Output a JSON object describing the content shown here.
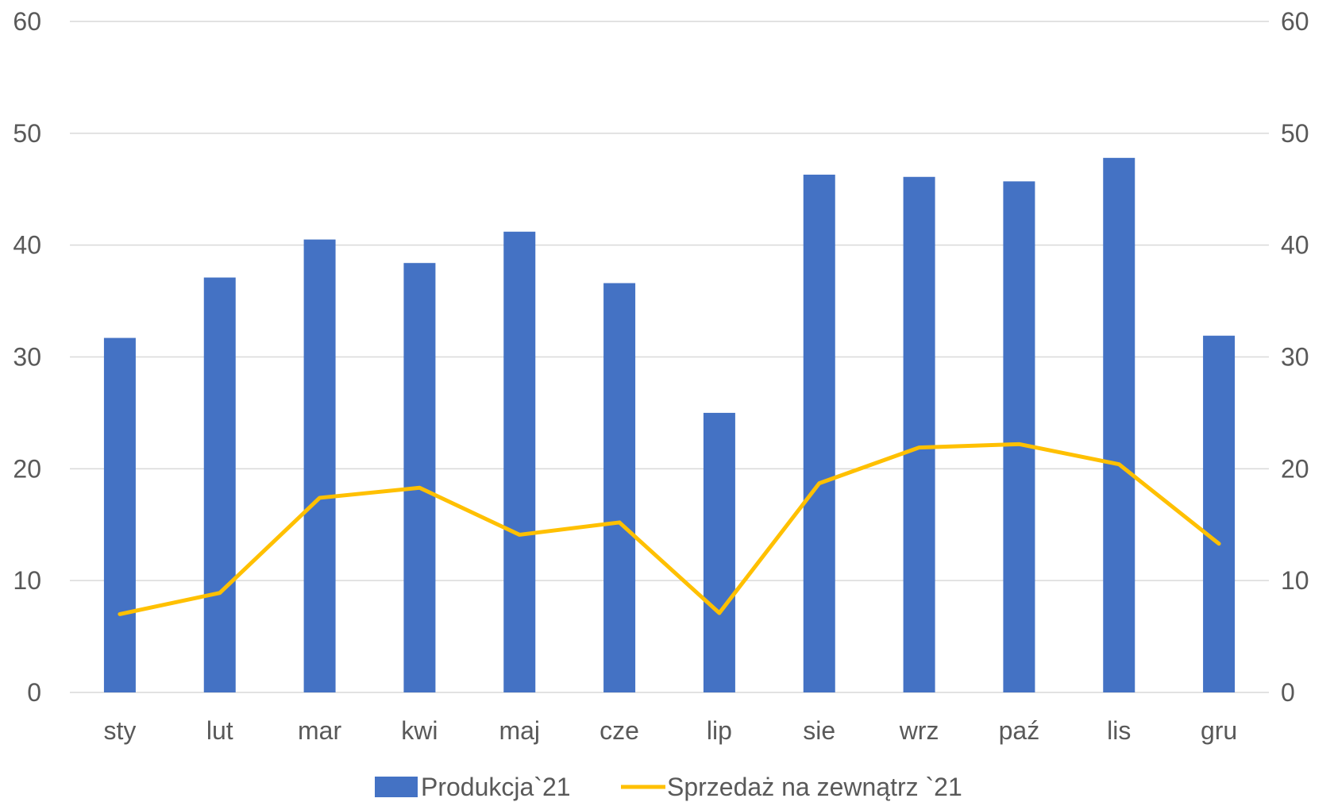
{
  "chart_data": {
    "type": "bar",
    "categories": [
      "sty",
      "lut",
      "mar",
      "kwi",
      "maj",
      "cze",
      "lip",
      "sie",
      "wrz",
      "paź",
      "lis",
      "gru"
    ],
    "series": [
      {
        "name": "Produkcja`21",
        "type": "bar",
        "axis": "left",
        "color": "#4472C4",
        "values": [
          31.7,
          37.1,
          40.5,
          38.4,
          41.2,
          36.6,
          25.0,
          46.3,
          46.1,
          45.7,
          47.8,
          31.9
        ]
      },
      {
        "name": "Sprzedaż na zewnątrz `21",
        "type": "line",
        "axis": "right",
        "color": "#FFC000",
        "values": [
          7.0,
          8.9,
          17.4,
          18.3,
          14.1,
          15.2,
          7.1,
          18.7,
          21.9,
          22.2,
          20.4,
          13.3
        ]
      }
    ],
    "y_left": {
      "min": 0,
      "max": 60,
      "ticks": [
        0,
        10,
        20,
        30,
        40,
        50,
        60
      ]
    },
    "y_right": {
      "min": 0,
      "max": 60,
      "ticks": [
        0,
        10,
        20,
        30,
        40,
        50,
        60
      ]
    },
    "grid": true,
    "gridline_color": "#D9D9D9",
    "legend_position": "bottom",
    "title": "",
    "xlabel": "",
    "ylabel": ""
  }
}
